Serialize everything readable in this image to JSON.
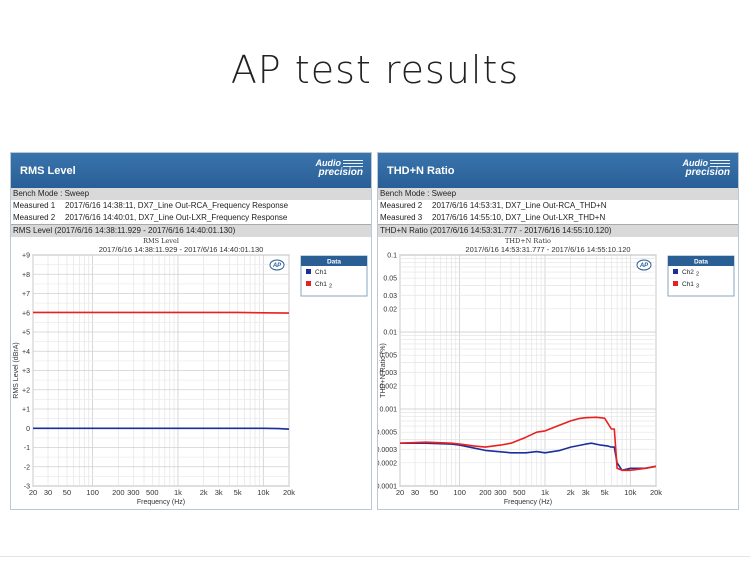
{
  "page": {
    "title": "AP test results"
  },
  "panels": [
    {
      "header": "RMS Level",
      "bench": "Bench Mode : Sweep",
      "measures": [
        {
          "label": "Measured 1",
          "text": "2017/6/16 14:38:11, DX7_Line Out-RCA_Frequency Response"
        },
        {
          "label": "Measured 2",
          "text": "2017/6/16 14:40:01, DX7_Line Out-LXR_Frequency Response"
        }
      ],
      "selection": "RMS Level (2017/6/16 14:38:11.929 - 2017/6/16 14:40:01.130)",
      "logo": [
        "Audio",
        "precision"
      ]
    },
    {
      "header": "THD+N Ratio",
      "bench": "Bench Mode : Sweep",
      "measures": [
        {
          "label": "Measured 2",
          "text": "2017/6/16 14:53:31, DX7_Line Out-RCA_THD+N"
        },
        {
          "label": "Measured 3",
          "text": "2017/6/16 14:55:10, DX7_Line Out-LXR_THD+N"
        }
      ],
      "selection": "THD+N Ratio (2017/6/16 14:53:31.777 - 2017/6/16 14:55:10.120)",
      "logo": [
        "Audio",
        "precision"
      ]
    }
  ],
  "chart_data": [
    {
      "type": "line",
      "title": "RMS Level",
      "subtitle": "2017/6/16 14:38:11.929 - 2017/6/16 14:40:01.130",
      "xlabel": "Frequency (Hz)",
      "ylabel": "RMS Level (dBrA)",
      "xscale": "log",
      "xlim": [
        20,
        20000
      ],
      "ylim": [
        -3,
        9
      ],
      "xticks": [
        20,
        30,
        50,
        100,
        200,
        300,
        500,
        1000,
        2000,
        3000,
        5000,
        10000,
        20000
      ],
      "xtick_labels": [
        "20",
        "30",
        "50",
        "100",
        "200",
        "300",
        "500",
        "1k",
        "2k",
        "3k",
        "5k",
        "10k",
        "20k"
      ],
      "yticks": [
        9,
        8,
        7,
        6,
        5,
        4,
        3,
        2,
        1,
        0,
        -1,
        -2,
        -3
      ],
      "ytick_labels": [
        "+9",
        "+8",
        "+7",
        "+6",
        "+5",
        "+4",
        "+3",
        "+2",
        "+1",
        "0",
        "-1",
        "-2",
        "-3"
      ],
      "grid": true,
      "legend": {
        "title": "Data",
        "placement": "top-right"
      },
      "series": [
        {
          "name": "Ch1",
          "color": "#1a2f9a",
          "x": [
            20,
            100,
            1000,
            10000,
            15000,
            20000
          ],
          "y": [
            0.0,
            0.0,
            0.0,
            0.0,
            -0.02,
            -0.05
          ]
        },
        {
          "name": "Ch1 2",
          "color": "#e8201f",
          "x": [
            20,
            100,
            1000,
            5000,
            10000,
            20000
          ],
          "y": [
            6.02,
            6.02,
            6.02,
            6.02,
            6.0,
            5.98
          ]
        }
      ]
    },
    {
      "type": "line",
      "title": "THD+N Ratio",
      "subtitle": "2017/6/16 14:53:31.777 - 2017/6/16 14:55:10.120",
      "xlabel": "Frequency (Hz)",
      "ylabel": "THD+N Ratio (%)",
      "xscale": "log",
      "yscale": "log",
      "xlim": [
        20,
        20000
      ],
      "ylim": [
        0.0001,
        0.1
      ],
      "xticks": [
        20,
        30,
        50,
        100,
        200,
        300,
        500,
        1000,
        2000,
        3000,
        5000,
        10000,
        20000
      ],
      "xtick_labels": [
        "20",
        "30",
        "50",
        "100",
        "200",
        "300",
        "500",
        "1k",
        "2k",
        "3k",
        "5k",
        "10k",
        "20k"
      ],
      "yticks": [
        0.1,
        0.05,
        0.03,
        0.02,
        0.01,
        0.005,
        0.003,
        0.002,
        0.001,
        0.0005,
        0.0003,
        0.0002,
        0.0001
      ],
      "ytick_labels": [
        "0.1",
        "0.05",
        "0.03",
        "0.02",
        "0.01",
        "0.005",
        "0.003",
        "0.002",
        "0.001",
        "0.0005",
        "0.0003",
        "0.0002",
        "0.0001"
      ],
      "grid": true,
      "legend": {
        "title": "Data",
        "placement": "top-right"
      },
      "series": [
        {
          "name": "Ch2 2",
          "color": "#1a2f9a",
          "x": [
            20,
            40,
            80,
            100,
            150,
            200,
            400,
            600,
            800,
            1000,
            1500,
            2000,
            3000,
            3500,
            4500,
            5500,
            6000,
            6500,
            7000,
            8000,
            10000,
            15000,
            20000
          ],
          "y": [
            0.00036,
            0.00036,
            0.00035,
            0.00034,
            0.00031,
            0.00029,
            0.00027,
            0.00027,
            0.00028,
            0.00027,
            0.00029,
            0.00032,
            0.00035,
            0.00036,
            0.00034,
            0.00033,
            0.00032,
            0.00032,
            0.0002,
            0.00016,
            0.00017,
            0.00017,
            0.00018
          ]
        },
        {
          "name": "Ch1 3",
          "color": "#e8201f",
          "x": [
            20,
            40,
            80,
            100,
            150,
            200,
            300,
            400,
            600,
            800,
            1000,
            1500,
            2000,
            2500,
            3000,
            4000,
            5000,
            6000,
            6500,
            7000,
            8000,
            10000,
            15000,
            20000
          ],
          "y": [
            0.00036,
            0.00037,
            0.00036,
            0.00035,
            0.00033,
            0.00032,
            0.00034,
            0.00036,
            0.00043,
            0.0005,
            0.00052,
            0.00062,
            0.0007,
            0.00075,
            0.00077,
            0.00078,
            0.00076,
            0.00055,
            0.00055,
            0.00017,
            0.00016,
            0.00016,
            0.00017,
            0.00018
          ]
        }
      ]
    }
  ]
}
